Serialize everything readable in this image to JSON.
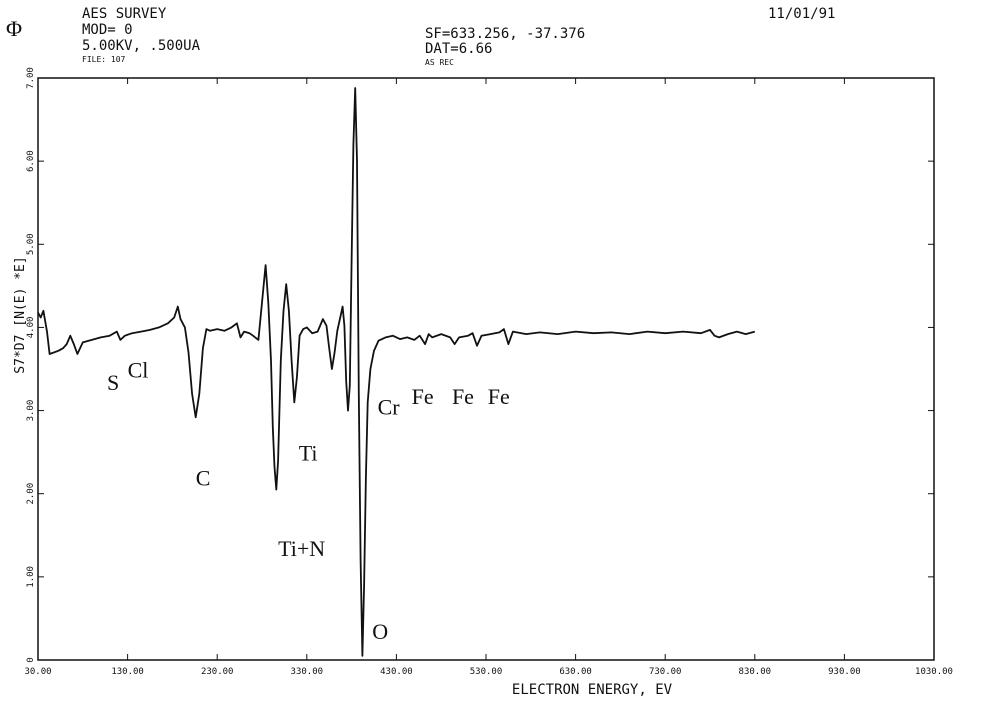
{
  "header": {
    "logo_glyph": "Φ",
    "left_lines": [
      "AES   SURVEY",
      "MOD= 0",
      "5.00KV,  .500UA",
      "FILE: 107"
    ],
    "center_lines": [
      "SF=633.256,  -37.376",
      "DAT=6.66",
      "AS REC"
    ],
    "date": "11/01/91"
  },
  "chart_data": {
    "type": "line",
    "xlabel": "ELECTRON ENERGY, EV",
    "ylabel": "S7*D7 [N(E) *E]",
    "xlim": [
      30,
      1030
    ],
    "ylim": [
      0,
      7
    ],
    "x_ticks": [
      30,
      130,
      230,
      330,
      430,
      530,
      630,
      730,
      830,
      930,
      1030
    ],
    "x_tick_labels": [
      "30.00",
      "130.00",
      "230.00",
      "330.00",
      "430.00",
      "530.00",
      "630.00",
      "730.00",
      "830.00",
      "930.00",
      "1030.00"
    ],
    "y_ticks": [
      0,
      1,
      2,
      3,
      4,
      5,
      6,
      7
    ],
    "y_tick_labels": [
      "0",
      "1.00",
      "2.00",
      "3.00",
      "4.00",
      "5.00",
      "6.00",
      "7.00"
    ],
    "grid": false,
    "series": [
      {
        "color": "#111111",
        "points": [
          [
            30,
            4.18
          ],
          [
            33,
            4.12
          ],
          [
            36,
            4.2
          ],
          [
            40,
            3.95
          ],
          [
            43,
            3.68
          ],
          [
            48,
            3.7
          ],
          [
            53,
            3.72
          ],
          [
            58,
            3.75
          ],
          [
            62,
            3.8
          ],
          [
            66,
            3.9
          ],
          [
            70,
            3.8
          ],
          [
            74,
            3.68
          ],
          [
            80,
            3.82
          ],
          [
            90,
            3.85
          ],
          [
            100,
            3.88
          ],
          [
            110,
            3.9
          ],
          [
            118,
            3.95
          ],
          [
            122,
            3.85
          ],
          [
            127,
            3.9
          ],
          [
            135,
            3.93
          ],
          [
            145,
            3.95
          ],
          [
            155,
            3.97
          ],
          [
            165,
            4.0
          ],
          [
            175,
            4.05
          ],
          [
            182,
            4.12
          ],
          [
            186,
            4.25
          ],
          [
            189,
            4.1
          ],
          [
            194,
            4.0
          ],
          [
            198,
            3.7
          ],
          [
            202,
            3.2
          ],
          [
            206,
            2.92
          ],
          [
            210,
            3.2
          ],
          [
            214,
            3.75
          ],
          [
            218,
            3.98
          ],
          [
            222,
            3.96
          ],
          [
            230,
            3.98
          ],
          [
            238,
            3.96
          ],
          [
            246,
            4.0
          ],
          [
            252,
            4.05
          ],
          [
            256,
            3.88
          ],
          [
            260,
            3.95
          ],
          [
            266,
            3.93
          ],
          [
            270,
            3.9
          ],
          [
            276,
            3.85
          ],
          [
            280,
            4.3
          ],
          [
            284,
            4.75
          ],
          [
            287,
            4.3
          ],
          [
            290,
            3.6
          ],
          [
            292,
            2.8
          ],
          [
            294,
            2.32
          ],
          [
            296,
            2.05
          ],
          [
            298,
            2.4
          ],
          [
            301,
            3.6
          ],
          [
            304,
            4.2
          ],
          [
            307,
            4.52
          ],
          [
            310,
            4.2
          ],
          [
            313,
            3.6
          ],
          [
            316,
            3.1
          ],
          [
            319,
            3.4
          ],
          [
            322,
            3.9
          ],
          [
            326,
            3.98
          ],
          [
            330,
            4.0
          ],
          [
            336,
            3.93
          ],
          [
            342,
            3.95
          ],
          [
            348,
            4.1
          ],
          [
            352,
            4.02
          ],
          [
            355,
            3.75
          ],
          [
            358,
            3.5
          ],
          [
            361,
            3.7
          ],
          [
            364,
            3.96
          ],
          [
            368,
            4.15
          ],
          [
            370,
            4.25
          ],
          [
            372,
            4.02
          ],
          [
            374,
            3.35
          ],
          [
            376,
            3.0
          ],
          [
            378,
            3.3
          ],
          [
            380,
            4.8
          ],
          [
            382,
            6.2
          ],
          [
            384,
            6.88
          ],
          [
            386,
            6.0
          ],
          [
            388,
            3.2
          ],
          [
            390,
            1.2
          ],
          [
            392,
            0.05
          ],
          [
            394,
            0.9
          ],
          [
            396,
            2.2
          ],
          [
            398,
            3.1
          ],
          [
            401,
            3.5
          ],
          [
            405,
            3.72
          ],
          [
            410,
            3.84
          ],
          [
            418,
            3.88
          ],
          [
            426,
            3.9
          ],
          [
            434,
            3.86
          ],
          [
            442,
            3.88
          ],
          [
            450,
            3.85
          ],
          [
            456,
            3.9
          ],
          [
            462,
            3.8
          ],
          [
            466,
            3.92
          ],
          [
            470,
            3.88
          ],
          [
            480,
            3.92
          ],
          [
            490,
            3.88
          ],
          [
            495,
            3.8
          ],
          [
            500,
            3.88
          ],
          [
            510,
            3.9
          ],
          [
            515,
            3.93
          ],
          [
            520,
            3.78
          ],
          [
            525,
            3.9
          ],
          [
            535,
            3.92
          ],
          [
            545,
            3.94
          ],
          [
            550,
            3.98
          ],
          [
            555,
            3.8
          ],
          [
            560,
            3.95
          ],
          [
            575,
            3.92
          ],
          [
            590,
            3.94
          ],
          [
            610,
            3.92
          ],
          [
            630,
            3.95
          ],
          [
            650,
            3.93
          ],
          [
            670,
            3.94
          ],
          [
            690,
            3.92
          ],
          [
            710,
            3.95
          ],
          [
            730,
            3.93
          ],
          [
            750,
            3.95
          ],
          [
            770,
            3.93
          ],
          [
            780,
            3.97
          ],
          [
            785,
            3.9
          ],
          [
            790,
            3.88
          ],
          [
            800,
            3.92
          ],
          [
            810,
            3.95
          ],
          [
            820,
            3.92
          ],
          [
            830,
            3.95
          ]
        ]
      }
    ],
    "annotations": [
      {
        "text": "S",
        "x": 107,
        "y": 3.25
      },
      {
        "text": "Cl",
        "x": 130,
        "y": 3.4
      },
      {
        "text": "C",
        "x": 206,
        "y": 2.1
      },
      {
        "text": "Ti+N",
        "x": 298,
        "y": 1.25
      },
      {
        "text": "Ti",
        "x": 321,
        "y": 2.4
      },
      {
        "text": "Cr",
        "x": 409,
        "y": 2.95
      },
      {
        "text": "Fe",
        "x": 447,
        "y": 3.08
      },
      {
        "text": "Fe",
        "x": 492,
        "y": 3.08
      },
      {
        "text": "Fe",
        "x": 532,
        "y": 3.08
      },
      {
        "text": "O",
        "x": 403,
        "y": 0.25
      }
    ]
  }
}
